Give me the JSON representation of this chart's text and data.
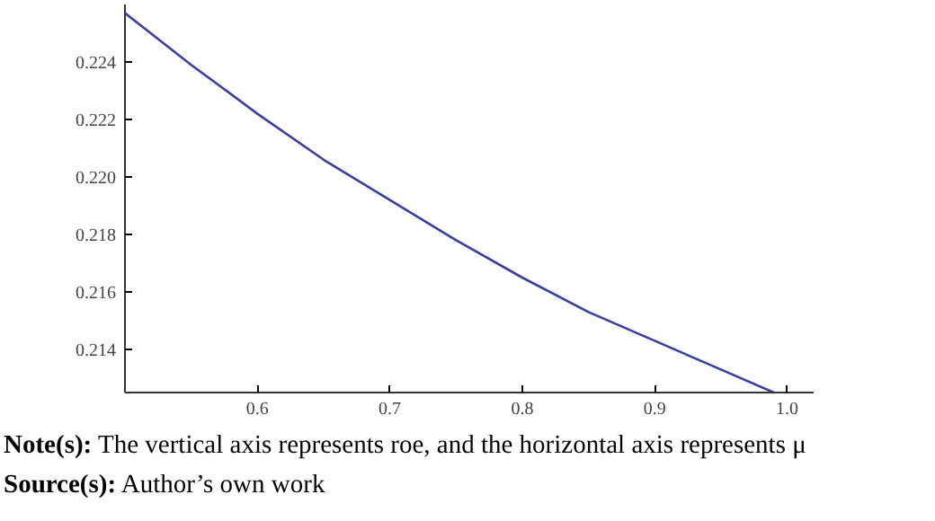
{
  "chart_data": {
    "type": "line",
    "x": [
      0.5,
      0.55,
      0.6,
      0.65,
      0.7,
      0.75,
      0.8,
      0.85,
      0.9,
      0.95,
      0.99
    ],
    "series": [
      {
        "color": "#3a3ea0",
        "values": [
          0.2257,
          0.2239,
          0.2222,
          0.2206,
          0.2192,
          0.2178,
          0.2165,
          0.2153,
          0.2143,
          0.2133,
          0.2125
        ]
      }
    ],
    "xlim": [
      0.5,
      1.02
    ],
    "ylim": [
      0.2125,
      0.226
    ],
    "xticks": [
      0.6,
      0.7,
      0.8,
      0.9,
      {
        "value": 1.0,
        "label": "1.0"
      }
    ],
    "yticks": [
      0.214,
      0.216,
      {
        "value": 0.218,
        "label": "0.218"
      },
      {
        "value": 0.22,
        "label": "0.220"
      },
      0.222,
      0.224
    ],
    "grid": false,
    "annotations": [
      "Note(s): The vertical axis represents roe, and the horizontal axis represents μ",
      "Source(s): Author’s own work"
    ]
  }
}
